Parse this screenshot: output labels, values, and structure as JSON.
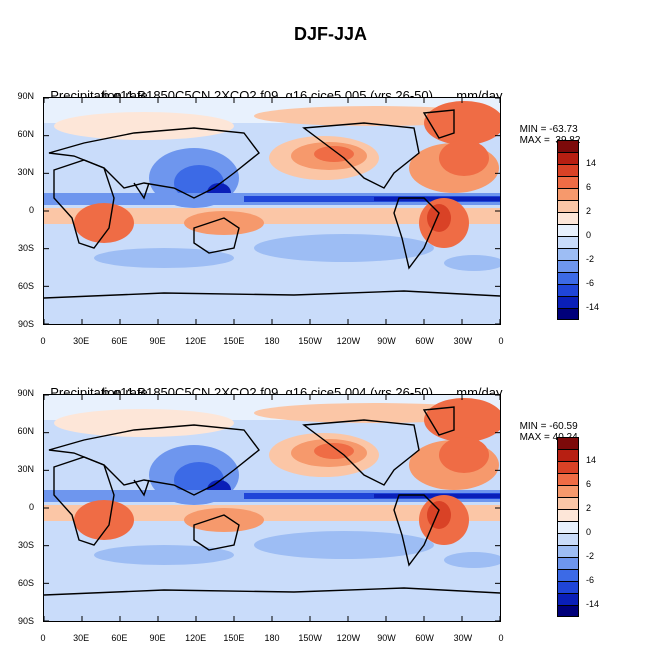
{
  "title": "DJF-JJA",
  "colors": {
    "palette": [
      "#00007a",
      "#0a1fb8",
      "#1f45d8",
      "#3c6ae6",
      "#6e96ee",
      "#9dbdf4",
      "#c9dcfa",
      "#e8f1fd",
      "#fde6d8",
      "#fbc6a6",
      "#f6996c",
      "#ef6c45",
      "#d94226",
      "#b71f12",
      "#7c0a0a"
    ],
    "land": "#000000",
    "frame": "#000000"
  },
  "panels": [
    {
      "left_title": "Precipitation rate",
      "case_title": "b.e11.B1850C5CN.2XCO2.f09_g16.cice5.005 (yrs 26-50)",
      "units": "mm/day",
      "min_label": "MIN = -63.73",
      "max_label": "MAX =  39.82",
      "y_ticks": [
        "90N",
        "60N",
        "30N",
        "0",
        "30S",
        "60S",
        "90S"
      ],
      "x_ticks": [
        "0",
        "30E",
        "60E",
        "90E",
        "120E",
        "150E",
        "180",
        "150W",
        "120W",
        "90W",
        "60W",
        "30W",
        "0"
      ],
      "colorbar_labels": [
        "14",
        "6",
        "2",
        "0",
        "-2",
        "-6",
        "-14"
      ]
    },
    {
      "left_title": "Precipitation rate",
      "case_title": "b.e11.B1850C5CN.2XCO2.f09_g16.cice5.004 (yrs 26-50)",
      "units": "mm/day",
      "min_label": "MIN = -60.59",
      "max_label": "MAX = 40.24",
      "y_ticks": [
        "90N",
        "60N",
        "30N",
        "0",
        "30S",
        "60S",
        "90S"
      ],
      "x_ticks": [
        "0",
        "30E",
        "60E",
        "90E",
        "120E",
        "150E",
        "180",
        "150W",
        "120W",
        "90W",
        "60W",
        "30W",
        "0"
      ],
      "colorbar_labels": [
        "14",
        "6",
        "2",
        "0",
        "-2",
        "-6",
        "-14"
      ]
    }
  ]
}
